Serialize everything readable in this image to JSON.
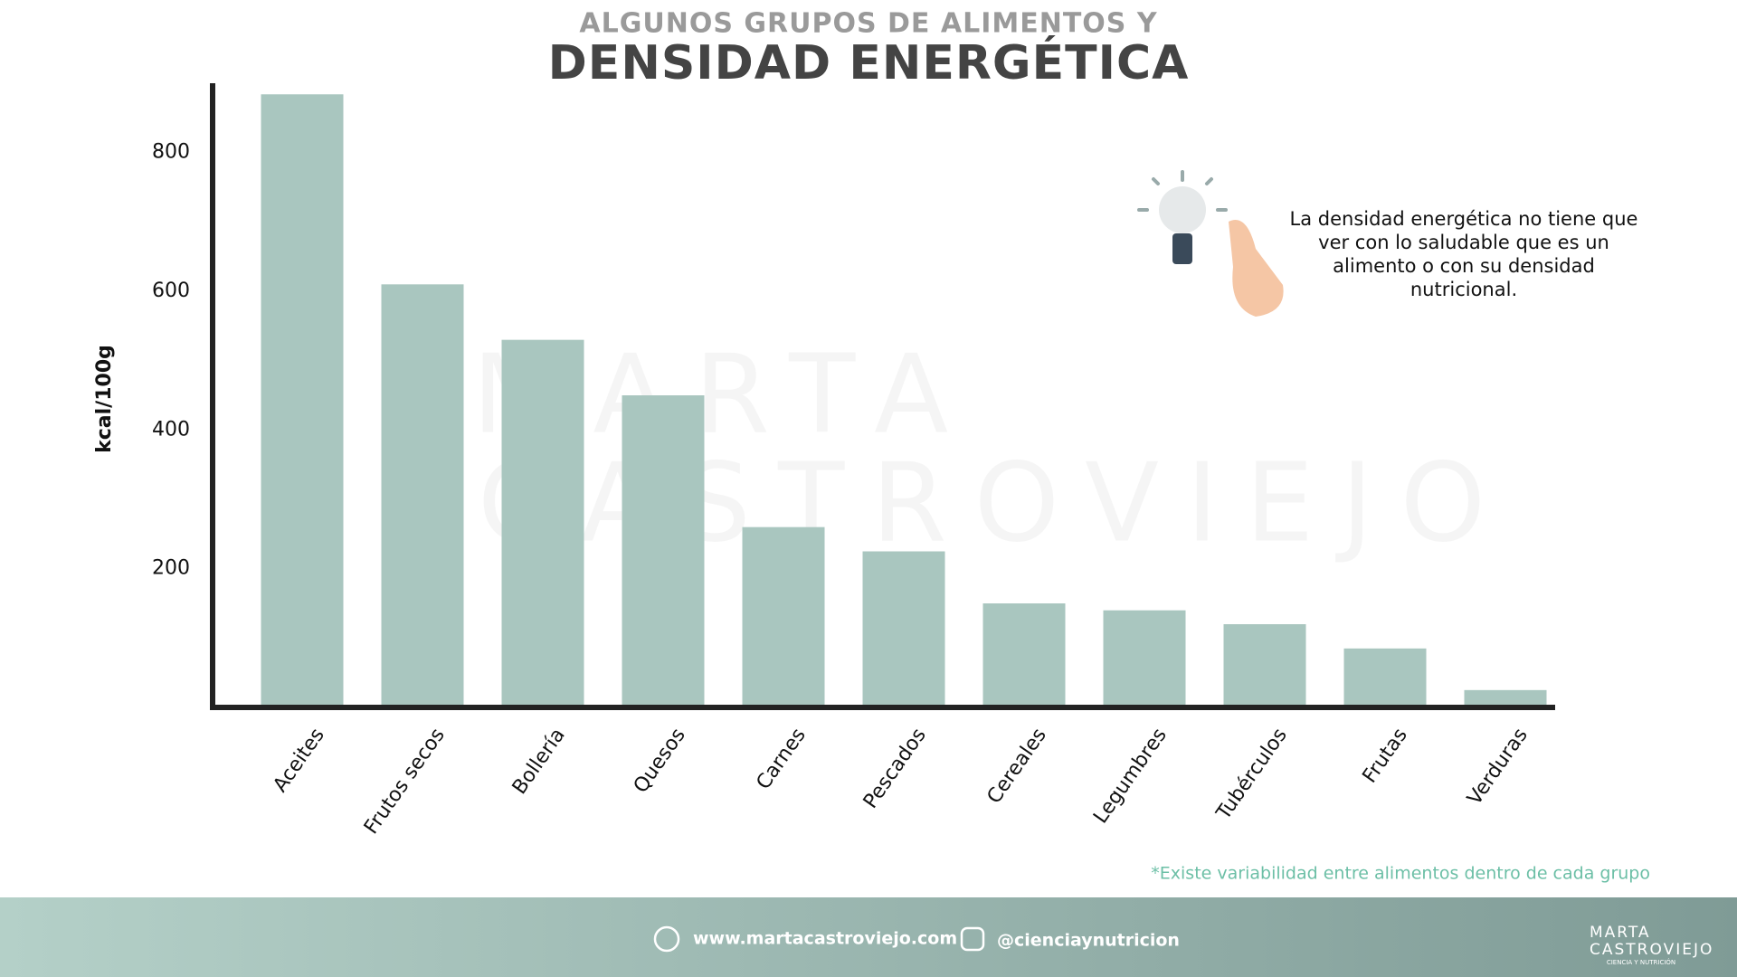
{
  "chart_data": {
    "type": "bar",
    "supertitle": "ALGUNOS GRUPOS DE ALIMENTOS Y",
    "title": "DENSIDAD ENERGÉTICA",
    "y_label": "kcal/100g",
    "categories": [
      "Aceites",
      "Frutos secos",
      "Bollería",
      "Quesos",
      "Carnes",
      "Pescados",
      "Cereales",
      "Legumbres",
      "Tubérculos",
      "Frutas",
      "Verduras"
    ],
    "values": [
      884,
      610,
      530,
      450,
      260,
      225,
      150,
      140,
      120,
      85,
      25
    ],
    "color": "#a9c6bf",
    "ylim": [
      0,
      900
    ],
    "yticks": [
      200,
      400,
      600,
      800
    ],
    "grid": false,
    "annotation": [
      "La densidad energética no tiene que",
      "ver con lo saludable que es un",
      "alimento o con su densidad",
      "nutricional."
    ],
    "footnote": "*Existe variabilidad entre alimentos dentro de cada grupo"
  },
  "watermark": [
    "MARTA",
    "CASTROVIEJO"
  ],
  "footer": {
    "website": "www.martacastroviejo.com",
    "instagram": "@cienciaynutricion",
    "brand": [
      "MARTA",
      "CASTROVIEJO"
    ],
    "tagline": "CIENCIA Y NUTRICIÓN"
  }
}
